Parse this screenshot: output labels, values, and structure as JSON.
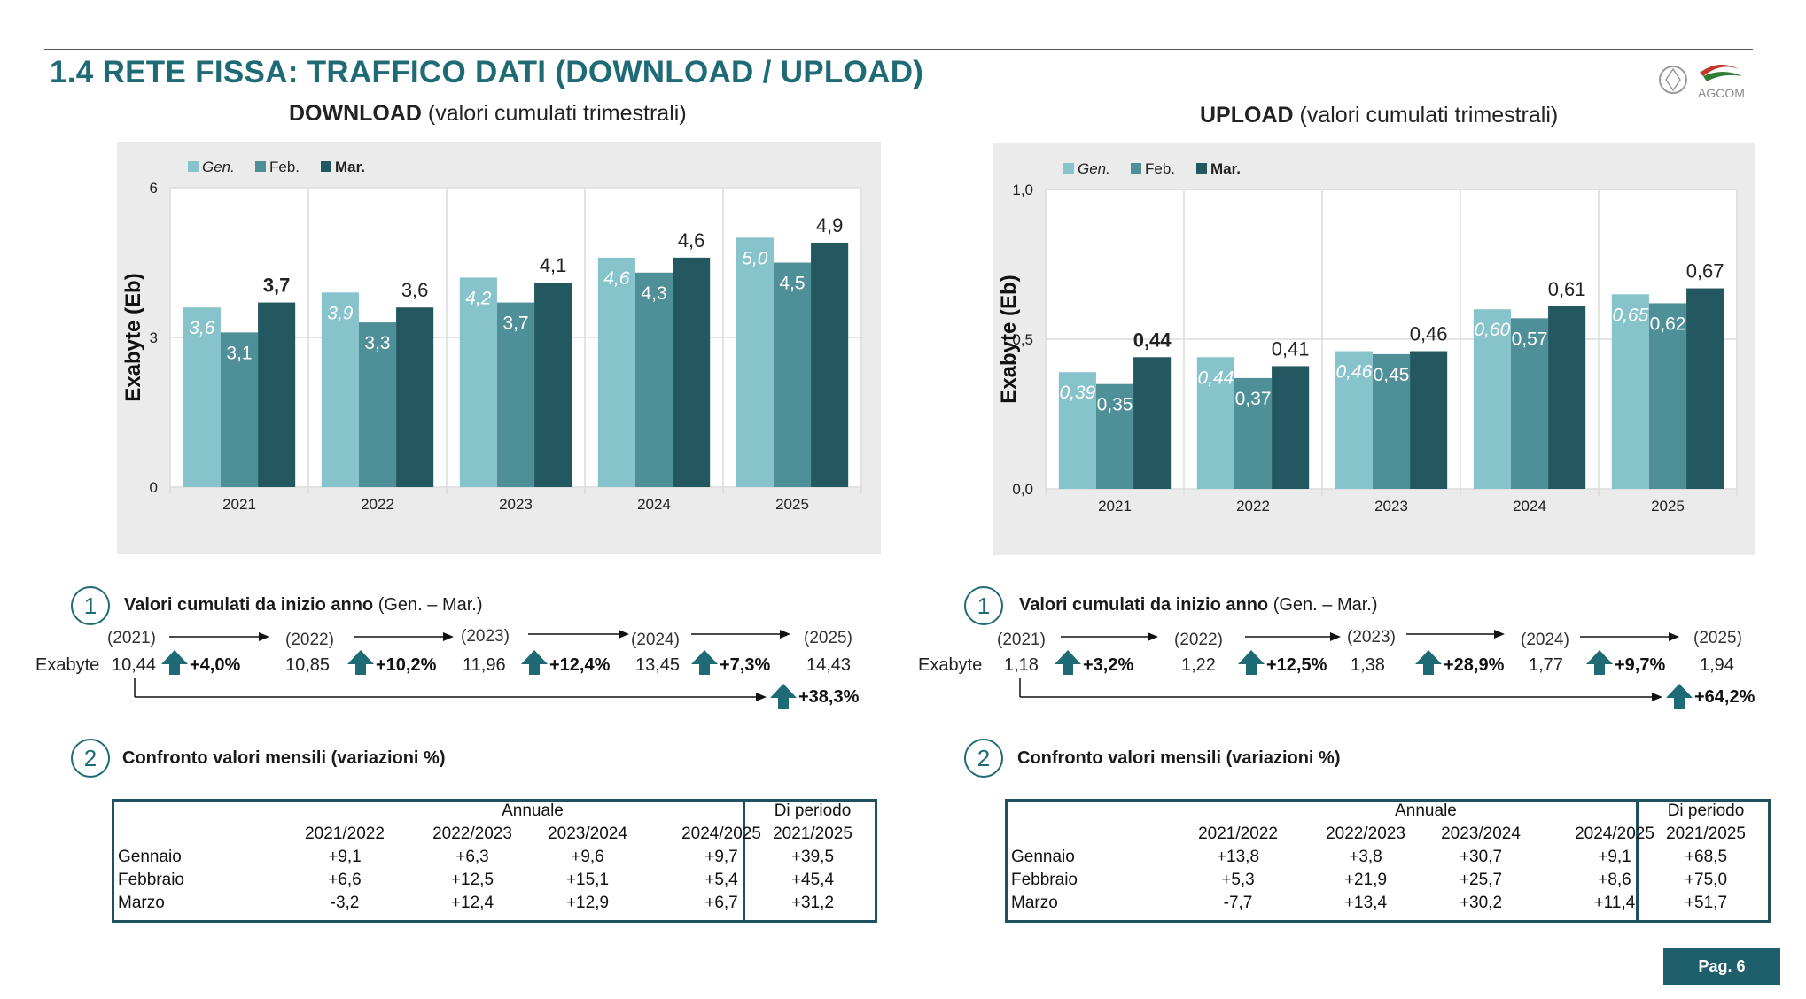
{
  "header": {
    "title": "1.4 RETE FISSA: TRAFFICO DATI (DOWNLOAD / UPLOAD)",
    "logo_text": "AGCOM"
  },
  "colors": {
    "gen": "#87c3cb",
    "feb": "#4f8f97",
    "mar": "#235861",
    "accent": "#1f6b75"
  },
  "download": {
    "title_bold": "DOWNLOAD",
    "title_rest": " (valori cumulati trimestrali)",
    "ylabel": "Exabyte (Eb)",
    "ticks": [
      "0",
      "3",
      "6"
    ],
    "legend": [
      "Gen.",
      "Feb.",
      "Mar."
    ],
    "labels": [
      [
        "3,6",
        "3,1",
        "3,7"
      ],
      [
        "3,9",
        "3,3",
        "3,6"
      ],
      [
        "4,2",
        "3,7",
        "4,1"
      ],
      [
        "4,6",
        "4,3",
        "4,6"
      ],
      [
        "5,0",
        "4,5",
        "4,9"
      ]
    ],
    "ytd": {
      "title_bold": "Valori cumulati da inizio anno",
      "title_rest": " (Gen. – Mar.)",
      "row_label": "Exabyte",
      "years": [
        "(2021)",
        "(2022)",
        "(2023)",
        "(2024)",
        "(2025)"
      ],
      "values": [
        "10,44",
        "10,85",
        "11,96",
        "13,45",
        "14,43"
      ],
      "changes": [
        "+4,0%",
        "+10,2%",
        "+12,4%",
        "+7,3%"
      ],
      "total": "+38,3%"
    },
    "monthly": {
      "title": "Confronto valori mensili (variazioni %)",
      "header_annual": "Annuale",
      "header_period": "Di periodo",
      "cols": [
        "2021/2022",
        "2022/2023",
        "2023/2024",
        "2024/2025",
        "2021/2025"
      ],
      "rows": [
        {
          "label": "Gennaio",
          "values": [
            "+9,1",
            "+6,3",
            "+9,6",
            "+9,7",
            "+39,5"
          ]
        },
        {
          "label": "Febbraio",
          "values": [
            "+6,6",
            "+12,5",
            "+15,1",
            "+5,4",
            "+45,4"
          ]
        },
        {
          "label": "Marzo",
          "values": [
            "-3,2",
            "+12,4",
            "+12,9",
            "+6,7",
            "+31,2"
          ]
        }
      ]
    }
  },
  "upload": {
    "title_bold": "UPLOAD",
    "title_rest": " (valori cumulati trimestrali)",
    "ylabel": "Exabyte (Eb)",
    "ticks": [
      "0,0",
      "0,5",
      "1,0"
    ],
    "legend": [
      "Gen.",
      "Feb.",
      "Mar."
    ],
    "labels": [
      [
        "0,39",
        "0,35",
        "0,44"
      ],
      [
        "0,44",
        "0,37",
        "0,41"
      ],
      [
        "0,46",
        "0,45",
        "0,46"
      ],
      [
        "0,60",
        "0,57",
        "0,61"
      ],
      [
        "0,65",
        "0,62",
        "0,67"
      ]
    ],
    "ytd": {
      "title_bold": "Valori cumulati da inizio anno",
      "title_rest": " (Gen. – Mar.)",
      "row_label": "Exabyte",
      "years": [
        "(2021)",
        "(2022)",
        "(2023)",
        "(2024)",
        "(2025)"
      ],
      "values": [
        "1,18",
        "1,22",
        "1,38",
        "1,77",
        "1,94"
      ],
      "changes": [
        "+3,2%",
        "+12,5%",
        "+28,9%",
        "+9,7%"
      ],
      "total": "+64,2%"
    },
    "monthly": {
      "title": "Confronto valori mensili (variazioni %)",
      "header_annual": "Annuale",
      "header_period": "Di periodo",
      "cols": [
        "2021/2022",
        "2022/2023",
        "2023/2024",
        "2024/2025",
        "2021/2025"
      ],
      "rows": [
        {
          "label": "Gennaio",
          "values": [
            "+13,8",
            "+3,8",
            "+30,7",
            "+9,1",
            "+68,5"
          ]
        },
        {
          "label": "Febbraio",
          "values": [
            "+5,3",
            "+21,9",
            "+25,7",
            "+8,6",
            "+75,0"
          ]
        },
        {
          "label": "Marzo",
          "values": [
            "-7,7",
            "+13,4",
            "+30,2",
            "+11,4",
            "+51,7"
          ]
        }
      ]
    }
  },
  "chart_data": [
    {
      "type": "bar",
      "title": "DOWNLOAD (valori cumulati trimestrali)",
      "xlabel": "",
      "ylabel": "Exabyte (Eb)",
      "ylim": [
        0,
        6
      ],
      "categories": [
        "2021",
        "2022",
        "2023",
        "2024",
        "2025"
      ],
      "series": [
        {
          "name": "Gen.",
          "values": [
            3.6,
            3.9,
            4.2,
            4.6,
            5.0
          ]
        },
        {
          "name": "Feb.",
          "values": [
            3.1,
            3.3,
            3.7,
            4.3,
            4.5
          ]
        },
        {
          "name": "Mar.",
          "values": [
            3.7,
            3.6,
            4.1,
            4.6,
            4.9
          ]
        }
      ],
      "legend": "top-left",
      "grid": true
    },
    {
      "type": "bar",
      "title": "UPLOAD (valori cumulati trimestrali)",
      "xlabel": "",
      "ylabel": "Exabyte (Eb)",
      "ylim": [
        0,
        1.0
      ],
      "categories": [
        "2021",
        "2022",
        "2023",
        "2024",
        "2025"
      ],
      "series": [
        {
          "name": "Gen.",
          "values": [
            0.39,
            0.44,
            0.46,
            0.6,
            0.65
          ]
        },
        {
          "name": "Feb.",
          "values": [
            0.35,
            0.37,
            0.45,
            0.57,
            0.62
          ]
        },
        {
          "name": "Mar.",
          "values": [
            0.44,
            0.41,
            0.46,
            0.61,
            0.67
          ]
        }
      ],
      "legend": "top-left",
      "grid": true
    }
  ],
  "footer": {
    "page": "Pag. 6"
  }
}
